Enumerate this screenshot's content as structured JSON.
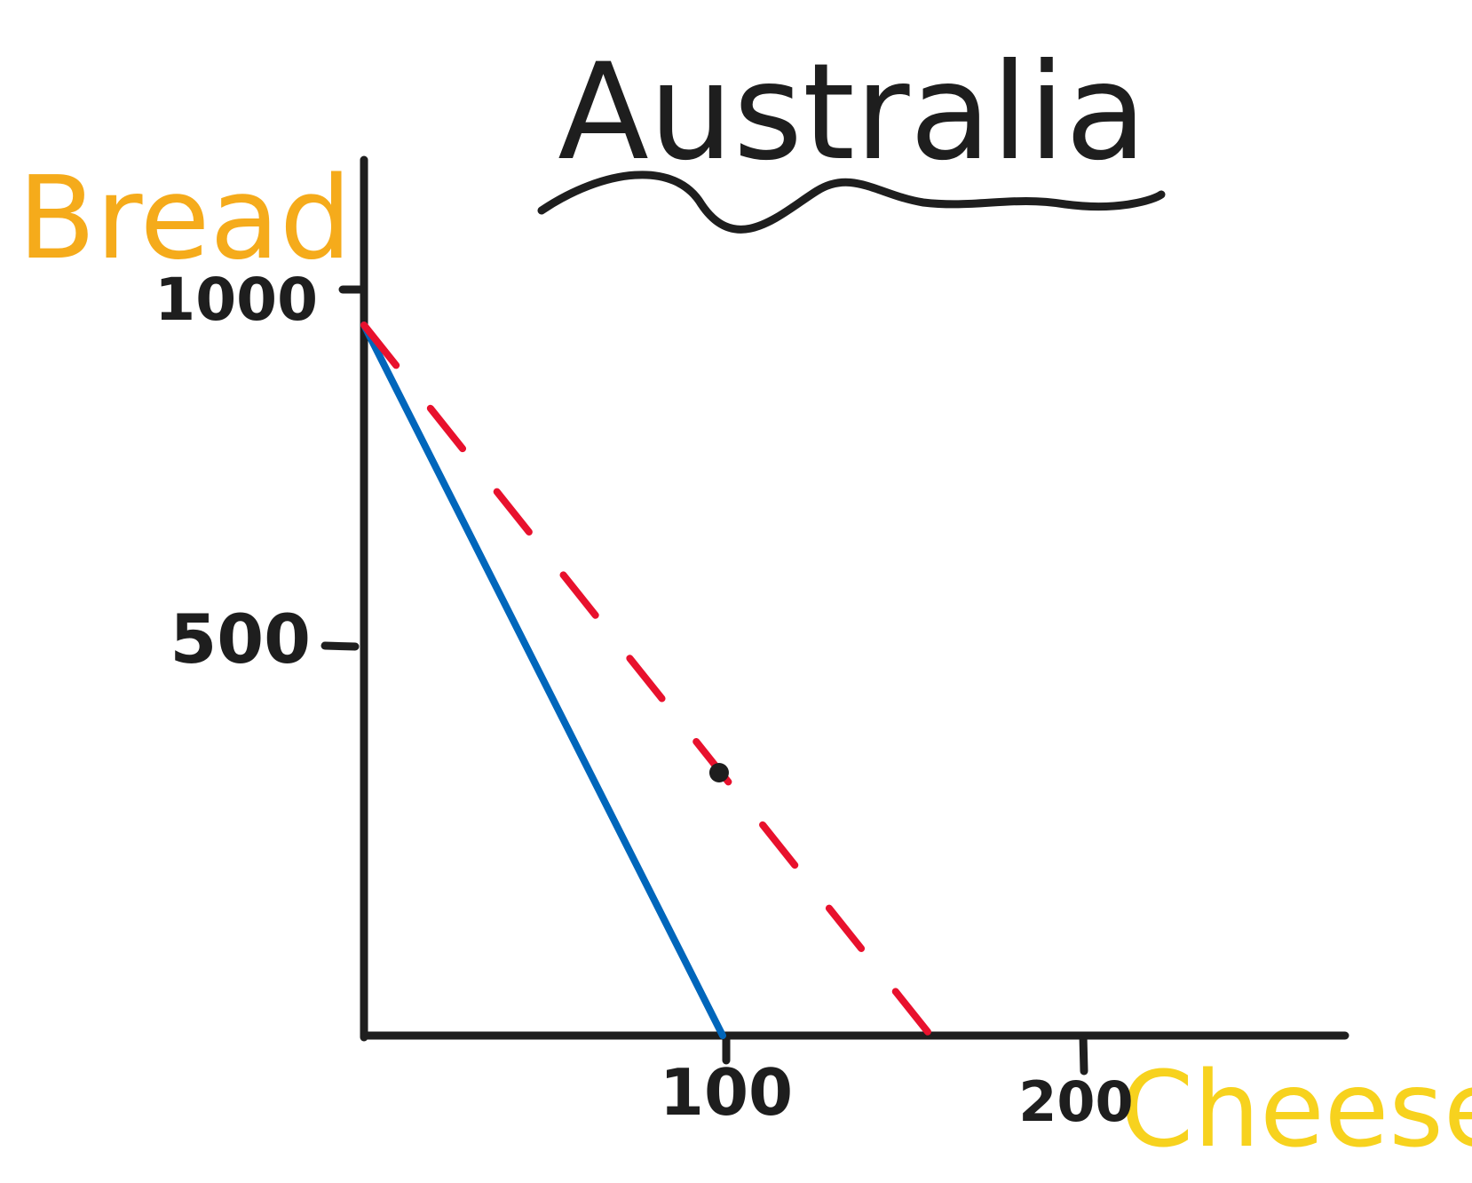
{
  "title": "Australia",
  "chart_data": {
    "type": "line",
    "title": "Australia",
    "xlabel": "Cheese",
    "ylabel": "Bread",
    "xlim": [
      0,
      275
    ],
    "ylim": [
      0,
      1000
    ],
    "x_ticks": [
      100,
      200
    ],
    "y_ticks": [
      500,
      1000
    ],
    "grid": false,
    "series": [
      {
        "color": "#0066bb",
        "style": "solid",
        "points": [
          [
            0,
            1000
          ],
          [
            100,
            0
          ]
        ]
      },
      {
        "color": "#e8112d",
        "style": "dashed",
        "points": [
          [
            0,
            1000
          ],
          [
            158,
            0
          ]
        ]
      }
    ],
    "markers": [
      {
        "x": 99,
        "y": 370,
        "color": "#1e1e1e"
      }
    ],
    "colors": {
      "axis": "#1e1e1e",
      "title": "#1e1e1e",
      "ylabel": "#f5ab1b",
      "xlabel": "#f7d21e"
    }
  }
}
